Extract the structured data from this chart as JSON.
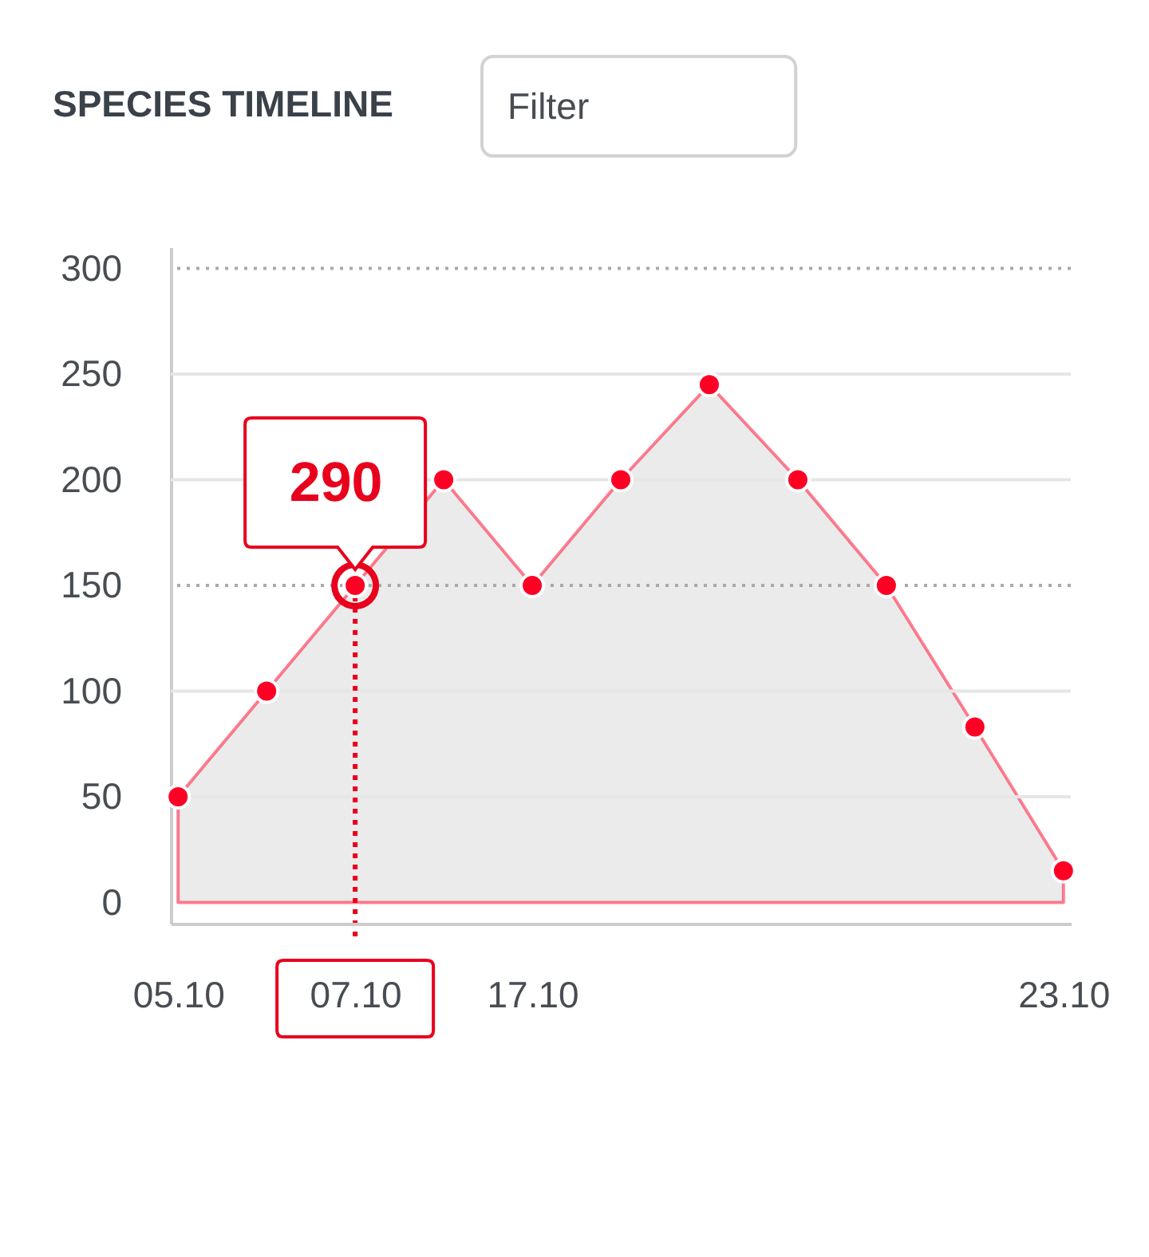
{
  "chart_data": {
    "type": "area",
    "title": "SPECIES TIMELINE",
    "annotations": [
      "Filter",
      {
        "text": "290",
        "x": "07.10",
        "y": 150
      }
    ],
    "categories": [
      "05.10",
      null,
      "07.10",
      null,
      "17.10",
      null,
      null,
      null,
      null,
      null,
      "23.10"
    ],
    "ylim": [
      -10,
      310
    ],
    "yticks": [
      0,
      50,
      100,
      150,
      200,
      250,
      300
    ],
    "series": [
      {
        "color": "#ff0025",
        "values": [
          50,
          100,
          150,
          200,
          150,
          200,
          245,
          200,
          150,
          83,
          15
        ]
      }
    ],
    "marker": "circle",
    "grid": "y",
    "ref_lines": [
      {
        "axis": "x",
        "value": "07.10",
        "color": "#e8001c",
        "line_style": "dotted"
      }
    ]
  }
}
